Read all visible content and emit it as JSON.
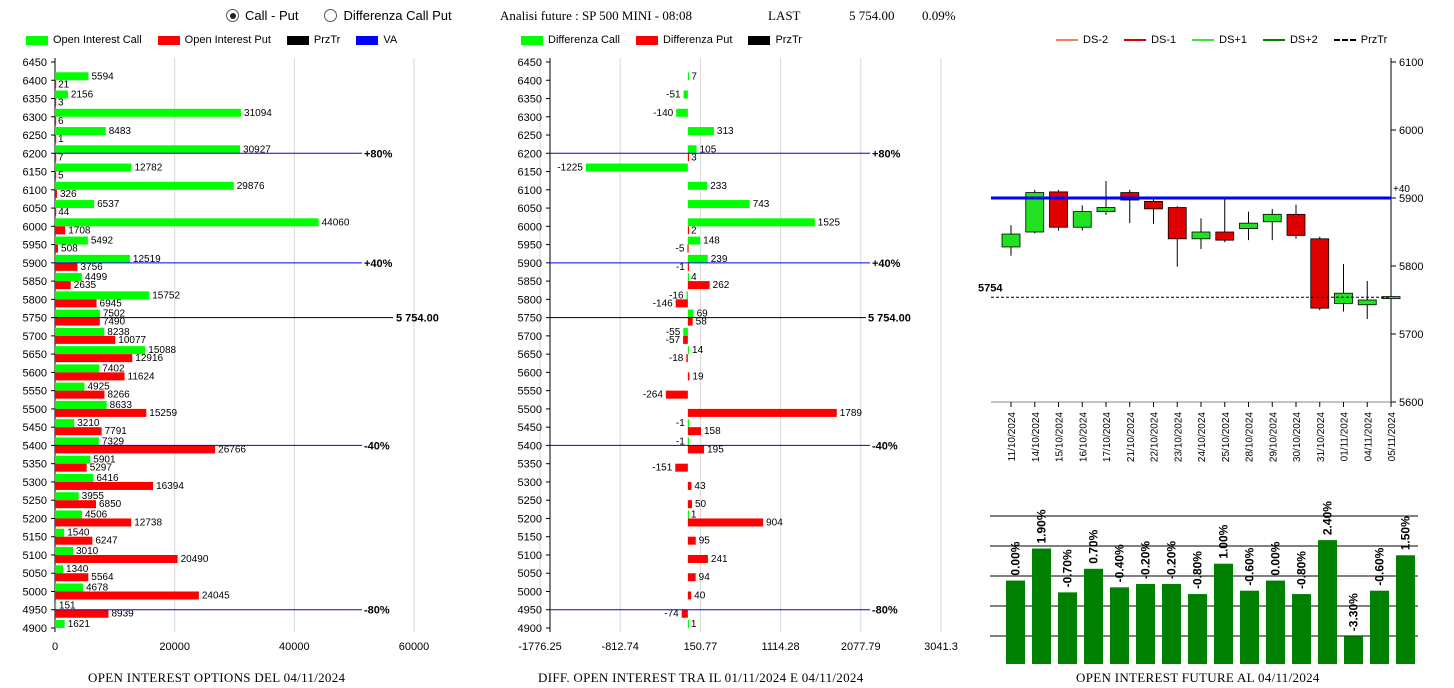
{
  "controls": {
    "radio_call_put": "Call - Put",
    "radio_diff": "Differenza Call Put",
    "selected": "call_put"
  },
  "header": {
    "title": "Analisi future : SP 500 MINI - 08:08",
    "last_label": "LAST",
    "last_value": "5 754.00",
    "change": "0.09%"
  },
  "chart_data": [
    {
      "type": "bar",
      "orientation": "horizontal",
      "title": "OPEN INTEREST OPTIONS DEL 04/11/2024",
      "legend": [
        {
          "name": "Open Interest Call",
          "color": "#00ff00"
        },
        {
          "name": "Open Interest Put",
          "color": "#ff0000"
        },
        {
          "name": "PrzTr",
          "color": "#000000"
        },
        {
          "name": "VA",
          "color": "#0000ff"
        }
      ],
      "categories": [
        6450,
        6400,
        6350,
        6300,
        6250,
        6200,
        6150,
        6100,
        6050,
        6000,
        5950,
        5900,
        5850,
        5800,
        5750,
        5700,
        5650,
        5600,
        5550,
        5500,
        5450,
        5400,
        5350,
        5300,
        5250,
        5200,
        5150,
        5100,
        5050,
        5000,
        4950,
        4900
      ],
      "series": [
        {
          "name": "Open Interest Call",
          "values": [
            null,
            5594,
            2156,
            31094,
            8483,
            30927,
            12782,
            29876,
            6537,
            44060,
            5492,
            12519,
            4499,
            15752,
            7502,
            8238,
            15088,
            7402,
            4925,
            8633,
            3210,
            7329,
            5901,
            6416,
            3955,
            4506,
            1540,
            3010,
            1340,
            4678,
            151,
            1621
          ]
        },
        {
          "name": "Open Interest Put",
          "values": [
            null,
            21,
            3,
            6,
            1,
            7,
            5,
            326,
            44,
            1708,
            508,
            3756,
            2635,
            6945,
            7490,
            10077,
            12916,
            11624,
            8266,
            15259,
            7791,
            26766,
            5297,
            16394,
            6850,
            12738,
            6247,
            20490,
            5564,
            24045,
            8939,
            null
          ]
        }
      ],
      "xlim": [
        0,
        60000
      ],
      "xticks": [
        "0",
        "20000",
        "40000",
        "60000"
      ],
      "reference_lines": [
        {
          "level": 6200,
          "label": "+80%",
          "type": "VA"
        },
        {
          "level": 5900,
          "label": "+40%",
          "type": "VA"
        },
        {
          "level": 5750,
          "label": "5 754.00",
          "type": "PrzTr"
        },
        {
          "level": 5400,
          "label": "-40%",
          "type": "VA"
        },
        {
          "level": 4950,
          "label": "-80%",
          "type": "VA"
        }
      ]
    },
    {
      "type": "bar",
      "orientation": "horizontal",
      "title": "DIFF. OPEN INTEREST TRA IL 01/11/2024 E 04/11/2024",
      "legend": [
        {
          "name": "Differenza Call",
          "color": "#00ff00"
        },
        {
          "name": "Differenza Put",
          "color": "#ff0000"
        },
        {
          "name": "PrzTr",
          "color": "#000000"
        }
      ],
      "categories": [
        6450,
        6400,
        6350,
        6300,
        6250,
        6200,
        6150,
        6100,
        6050,
        6000,
        5950,
        5900,
        5850,
        5800,
        5750,
        5700,
        5650,
        5600,
        5550,
        5500,
        5450,
        5400,
        5350,
        5300,
        5250,
        5200,
        5150,
        5100,
        5050,
        5000,
        4950,
        4900
      ],
      "series": [
        {
          "name": "Differenza Call",
          "values": [
            null,
            7,
            -51,
            -140,
            313,
            105,
            -1225,
            233,
            743,
            1525,
            148,
            239,
            4,
            -16,
            69,
            -55,
            14,
            null,
            null,
            null,
            -1,
            -1,
            null,
            null,
            null,
            1,
            null,
            null,
            null,
            null,
            null,
            1
          ]
        },
        {
          "name": "Differenza Put",
          "values": [
            null,
            null,
            null,
            null,
            null,
            3,
            null,
            null,
            null,
            2,
            -5,
            -1,
            262,
            -146,
            58,
            -57,
            -18,
            19,
            -264,
            1789,
            158,
            195,
            -151,
            43,
            50,
            904,
            95,
            241,
            94,
            40,
            -74,
            null
          ]
        }
      ],
      "xlim": [
        -1776.25,
        3041.3
      ],
      "xticks": [
        "-1776.25",
        "-812.74",
        "150.77",
        "1114.28",
        "2077.79",
        "3041.3"
      ],
      "reference_lines": [
        {
          "level": 6200,
          "label": "+80%",
          "type": "VA"
        },
        {
          "level": 5900,
          "label": "+40%",
          "type": "VA"
        },
        {
          "level": 5750,
          "label": "5 754.00",
          "type": "PrzTr"
        },
        {
          "level": 5400,
          "label": "-40%",
          "type": "VA"
        },
        {
          "level": 4950,
          "label": "-80%",
          "type": "VA"
        }
      ]
    },
    {
      "type": "candlestick",
      "legend": [
        {
          "name": "DS-2",
          "color": "#f08060"
        },
        {
          "name": "DS-1",
          "color": "#d00000"
        },
        {
          "name": "DS+1",
          "color": "#40e040"
        },
        {
          "name": "DS+2",
          "color": "#008000"
        },
        {
          "name": "PrzTr",
          "color": "#000000"
        }
      ],
      "categories": [
        "11/10/2024",
        "14/10/2024",
        "15/10/2024",
        "16/10/2024",
        "17/10/2024",
        "21/10/2024",
        "22/10/2024",
        "23/10/2024",
        "24/10/2024",
        "25/10/2024",
        "28/10/2024",
        "29/10/2024",
        "30/10/2024",
        "31/10/2024",
        "01/11/2024",
        "04/11/2024",
        "05/11/2024"
      ],
      "candles": [
        {
          "open": 5828,
          "close": 5847,
          "high": 5860,
          "low": 5815
        },
        {
          "open": 5850,
          "close": 5908,
          "high": 5912,
          "low": 5848
        },
        {
          "open": 5909,
          "close": 5857,
          "high": 5912,
          "low": 5852
        },
        {
          "open": 5857,
          "close": 5880,
          "high": 5889,
          "low": 5852
        },
        {
          "open": 5880,
          "close": 5886,
          "high": 5925,
          "low": 5875
        },
        {
          "open": 5908,
          "close": 5897,
          "high": 5912,
          "low": 5863
        },
        {
          "open": 5895,
          "close": 5884,
          "high": 5900,
          "low": 5862
        },
        {
          "open": 5886,
          "close": 5840,
          "high": 5888,
          "low": 5799
        },
        {
          "open": 5840,
          "close": 5850,
          "high": 5870,
          "low": 5825
        },
        {
          "open": 5850,
          "close": 5838,
          "high": 5898,
          "low": 5835
        },
        {
          "open": 5855,
          "close": 5863,
          "high": 5880,
          "low": 5838
        },
        {
          "open": 5865,
          "close": 5876,
          "high": 5884,
          "low": 5838
        },
        {
          "open": 5876,
          "close": 5845,
          "high": 5890,
          "low": 5840
        },
        {
          "open": 5840,
          "close": 5738,
          "high": 5843,
          "low": 5735
        },
        {
          "open": 5745,
          "close": 5760,
          "high": 5803,
          "low": 5733
        },
        {
          "open": 5743,
          "close": 5750,
          "high": 5778,
          "low": 5722
        },
        {
          "open": 5752,
          "close": 5755,
          "high": 5760,
          "low": 5735
        }
      ],
      "ylim": [
        5600,
        6100
      ],
      "yticks": [
        "6100",
        "6000",
        "5900",
        "5800",
        "5700",
        "5600"
      ],
      "reference_lines": [
        {
          "level": 5900,
          "label": "+40",
          "color": "#0000ff"
        },
        {
          "level": 5754,
          "label": "5754",
          "color": "#000000"
        }
      ]
    },
    {
      "type": "bar",
      "title": "OPEN INTEREST FUTURE AL 04/11/2024",
      "value_labels": [
        "0.00%",
        "1.90%",
        "-0.70%",
        "0.70%",
        "-0.40%",
        "-0.20%",
        "-0.20%",
        "-0.80%",
        "1.00%",
        "-0.60%",
        "0.00%",
        "-0.80%",
        "2.40%",
        "-3.30%",
        "-0.60%",
        "1.50%"
      ],
      "values": [
        0.0,
        1.9,
        -0.7,
        0.7,
        -0.4,
        -0.2,
        -0.2,
        -0.8,
        1.0,
        -0.6,
        0.0,
        -0.8,
        2.4,
        -3.3,
        -0.6,
        1.5
      ],
      "grid": true,
      "color": "#008000"
    }
  ]
}
